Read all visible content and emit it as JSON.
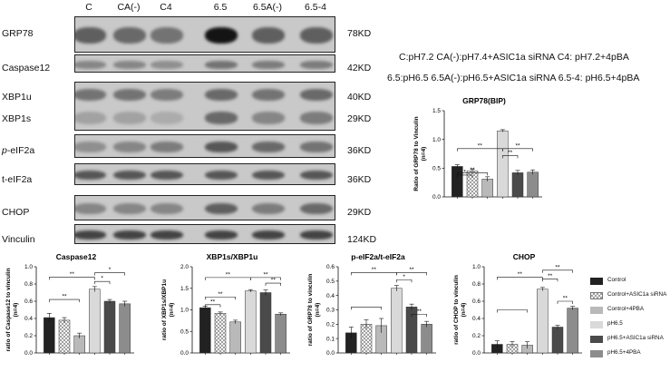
{
  "blot": {
    "lanes": [
      "C",
      "CA(-)",
      "C4",
      "6.5",
      "6.5A(-)",
      "6.5-4"
    ],
    "rows": [
      {
        "name": "GRP78",
        "kd": "78KD"
      },
      {
        "name": "Caspase12",
        "kd": "42KD"
      },
      {
        "name": "XBP1u",
        "kd": "40KD"
      },
      {
        "name": "XBP1s",
        "kd": "29KD"
      },
      {
        "name_prefix": "p",
        "name": "-eIF2a",
        "kd": "36KD"
      },
      {
        "name": "t-eIF2a",
        "kd": "36KD"
      },
      {
        "name": "CHOP",
        "kd": "29KD"
      },
      {
        "name": "Vinculin",
        "kd": "124KD"
      }
    ]
  },
  "lane_key": {
    "line1": "C:pH7.2   CA(-):pH7.4+ASIC1a siRNA C4: pH7.2+4pBA",
    "line2": "6.5:pH6.5  6.5A(-):pH6.5+ASIC1a siRNA 6.5-4: pH6.5+4pBA"
  },
  "legend": [
    {
      "label": "Control",
      "color": "#222222",
      "pattern": "solid"
    },
    {
      "label": "Control+ASIC1a siRNA",
      "color": "#e8e8e8",
      "pattern": "check"
    },
    {
      "label": "Control+4PBA",
      "color": "#b9b9b9",
      "pattern": "solid"
    },
    {
      "label": "pH6.5",
      "color": "#d9d9d9",
      "pattern": "solid"
    },
    {
      "label": "pH6.5+ASIC1a siRNA",
      "color": "#4a4a4a",
      "pattern": "solid"
    },
    {
      "label": "pH6.5+4PBA",
      "color": "#8c8c8c",
      "pattern": "solid"
    }
  ],
  "chart_data": [
    {
      "type": "bar",
      "title": "GRP78(BIP)",
      "ylabel": "Ratio of GRP78 to Vinculin",
      "ylabel2": "(n=4)",
      "ylim": [
        0,
        1.5
      ],
      "yticks": [
        "0.0",
        "0.5",
        "1.0",
        "1.5"
      ],
      "series": [
        "Control",
        "Control+ASIC1a siRNA",
        "Control+4PBA",
        "pH6.5",
        "pH6.5+ASIC1a siRNA",
        "pH6.5+4PBA"
      ],
      "values": [
        0.53,
        0.45,
        0.31,
        1.15,
        0.42,
        0.43
      ],
      "errors": [
        0.03,
        0.03,
        0.04,
        0.02,
        0.04,
        0.04
      ],
      "sig": [
        {
          "from": 0,
          "to": 3,
          "label": "**",
          "level": 0.84
        },
        {
          "from": 0,
          "to": 1,
          "label": "*",
          "level": 0.38
        },
        {
          "from": 0,
          "to": 2,
          "label": "**",
          "level": 0.42
        },
        {
          "from": 3,
          "to": 5,
          "label": "**",
          "level": 0.84
        },
        {
          "from": 3,
          "to": 4,
          "label": "**",
          "level": 0.72
        }
      ]
    },
    {
      "type": "bar",
      "title": "Caspase12",
      "ylabel": "ratio of Caspase12 to  vinculin",
      "ylabel2": "(n=4)",
      "ylim": [
        0,
        1.0
      ],
      "yticks": [
        "0.0",
        "0.2",
        "0.4",
        "0.6",
        "0.8",
        "1.0"
      ],
      "series": [
        "Control",
        "Control+ASIC1a siRNA",
        "Control+4PBA",
        "pH6.5",
        "pH6.5+ASIC1a siRNA",
        "pH6.5+4PBA"
      ],
      "values": [
        0.41,
        0.38,
        0.2,
        0.74,
        0.6,
        0.57
      ],
      "errors": [
        0.05,
        0.03,
        0.03,
        0.03,
        0.02,
        0.03
      ],
      "sig": [
        {
          "from": 0,
          "to": 3,
          "label": "**",
          "level": 0.88
        },
        {
          "from": 0,
          "to": 2,
          "label": "**",
          "level": 0.62
        },
        {
          "from": 3,
          "to": 4,
          "label": "*",
          "level": 0.83
        },
        {
          "from": 3,
          "to": 5,
          "label": "*",
          "level": 0.93
        }
      ]
    },
    {
      "type": "bar",
      "title": "XBP1s/XBP1u",
      "ylabel": "ratio of XBP1s/XBP1u",
      "ylabel2": "(n=4)",
      "ylim": [
        0,
        2.0
      ],
      "yticks": [
        "0.0",
        "0.5",
        "1.0",
        "1.5",
        "2.0"
      ],
      "series": [
        "Control",
        "Control+ASIC1a siRNA",
        "Control+4PBA",
        "pH6.5",
        "pH6.5+ASIC1a siRNA",
        "pH6.5+4PBA"
      ],
      "values": [
        1.05,
        0.92,
        0.72,
        1.44,
        1.4,
        0.9
      ],
      "errors": [
        0.03,
        0.03,
        0.04,
        0.03,
        0.06,
        0.03
      ],
      "sig": [
        {
          "from": 0,
          "to": 3,
          "label": "**",
          "level": 1.75
        },
        {
          "from": 0,
          "to": 1,
          "label": "**",
          "level": 1.12
        },
        {
          "from": 0,
          "to": 2,
          "label": "**",
          "level": 1.3
        },
        {
          "from": 3,
          "to": 5,
          "label": "**",
          "level": 1.75
        },
        {
          "from": 4,
          "to": 5,
          "label": "**",
          "level": 1.62
        }
      ]
    },
    {
      "type": "bar",
      "title": "p-eIF2a/t-eIF2a",
      "ylabel": "ratio of GRP78 to  vinculin",
      "ylabel2": "(n=4)",
      "ylim": [
        0,
        0.6
      ],
      "yticks": [
        "0.0",
        "0.1",
        "0.2",
        "0.3",
        "0.4",
        "0.5",
        "0.6"
      ],
      "series": [
        "Control",
        "Control+ASIC1a siRNA",
        "Control+4PBA",
        "pH6.5",
        "pH6.5+ASIC1a siRNA",
        "pH6.5+4PBA"
      ],
      "values": [
        0.14,
        0.2,
        0.19,
        0.45,
        0.32,
        0.2
      ],
      "errors": [
        0.04,
        0.03,
        0.05,
        0.02,
        0.02,
        0.02
      ],
      "sig": [
        {
          "from": 0,
          "to": 3,
          "label": "**",
          "level": 0.56
        },
        {
          "from": 0,
          "to": 2,
          "label": "",
          "level": 0.32
        },
        {
          "from": 3,
          "to": 4,
          "label": "*",
          "level": 0.51
        },
        {
          "from": 3,
          "to": 5,
          "label": "**",
          "level": 0.56
        },
        {
          "from": 4,
          "to": 5,
          "label": "**",
          "level": 0.27
        }
      ]
    },
    {
      "type": "bar",
      "title": "CHOP",
      "ylabel": "ratio of CHOP to  vinculin",
      "ylabel2": "(n=4)",
      "ylim": [
        0,
        1.0
      ],
      "yticks": [
        "0.0",
        "0.2",
        "0.4",
        "0.6",
        "0.8",
        "1.0"
      ],
      "series": [
        "Control",
        "Control+ASIC1a siRNA",
        "Control+4PBA",
        "pH6.5",
        "pH6.5+ASIC1a siRNA",
        "pH6.5+4PBA"
      ],
      "values": [
        0.1,
        0.1,
        0.09,
        0.74,
        0.3,
        0.52
      ],
      "errors": [
        0.04,
        0.03,
        0.04,
        0.02,
        0.02,
        0.02
      ],
      "sig": [
        {
          "from": 0,
          "to": 3,
          "label": "**",
          "level": 0.88
        },
        {
          "from": 0,
          "to": 2,
          "label": "",
          "level": 0.5
        },
        {
          "from": 3,
          "to": 4,
          "label": "**",
          "level": 0.86
        },
        {
          "from": 3,
          "to": 5,
          "label": "**",
          "level": 0.96
        },
        {
          "from": 4,
          "to": 5,
          "label": "**",
          "level": 0.6
        }
      ]
    }
  ]
}
